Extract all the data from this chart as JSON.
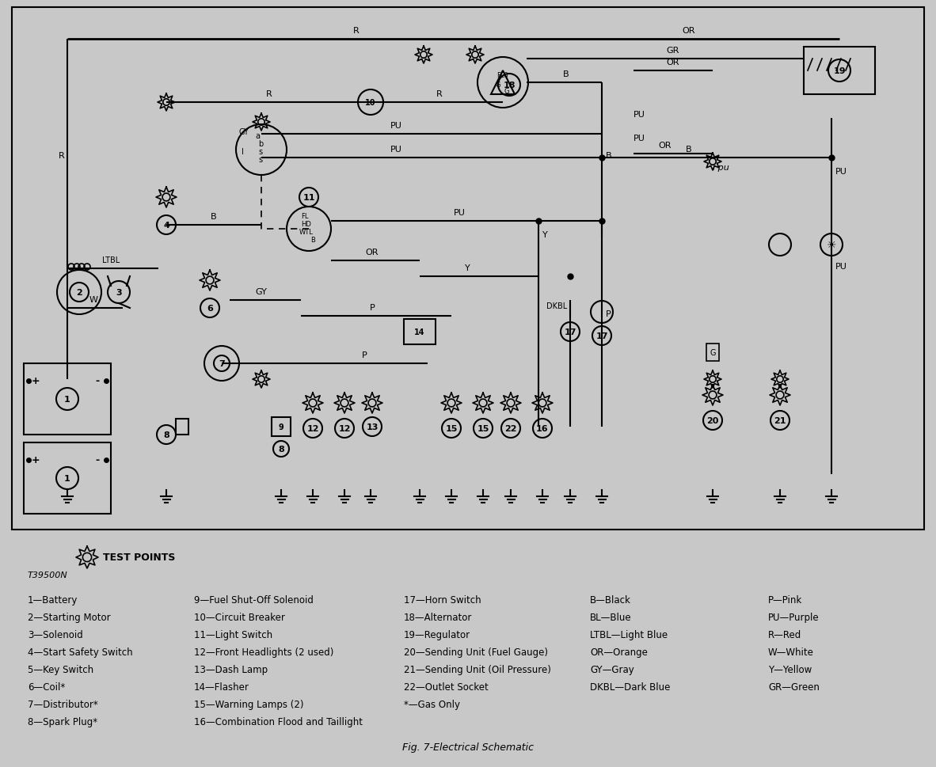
{
  "bg_color": "#c8c8c8",
  "title": "Fig. 7-Electrical Schematic",
  "part_number": "T39500N",
  "legend_col1": [
    "1—Battery",
    "2—Starting Motor",
    "3—Solenoid",
    "4—Start Safety Switch",
    "5—Key Switch",
    "6—Coil*",
    "7—Distributor*",
    "8—Spark Plug*"
  ],
  "legend_col2": [
    "9—Fuel Shut-Off Solenoid",
    "10—Circuit Breaker",
    "11—Light Switch",
    "12—Front Headlights (2 used)",
    "13—Dash Lamp",
    "14—Flasher",
    "15—Warning Lamps (2)",
    "16—Combination Flood and Taillight"
  ],
  "legend_col3": [
    "17—Horn Switch",
    "18—Alternator",
    "19—Regulator",
    "20—Sending Unit (Fuel Gauge)",
    "21—Sending Unit (Oil Pressure)",
    "22—Outlet Socket",
    "*—Gas Only"
  ],
  "legend_col4": [
    "B—Black",
    "BL—Blue",
    "LTBL—Light Blue",
    "OR—Orange",
    "GY—Gray",
    "DKBL—Dark Blue"
  ],
  "legend_col5": [
    "P—Pink",
    "PU—Purple",
    "R—Red",
    "W—White",
    "Y—Yellow",
    "GR—Green"
  ],
  "test_points_label": "TEST POINTS"
}
